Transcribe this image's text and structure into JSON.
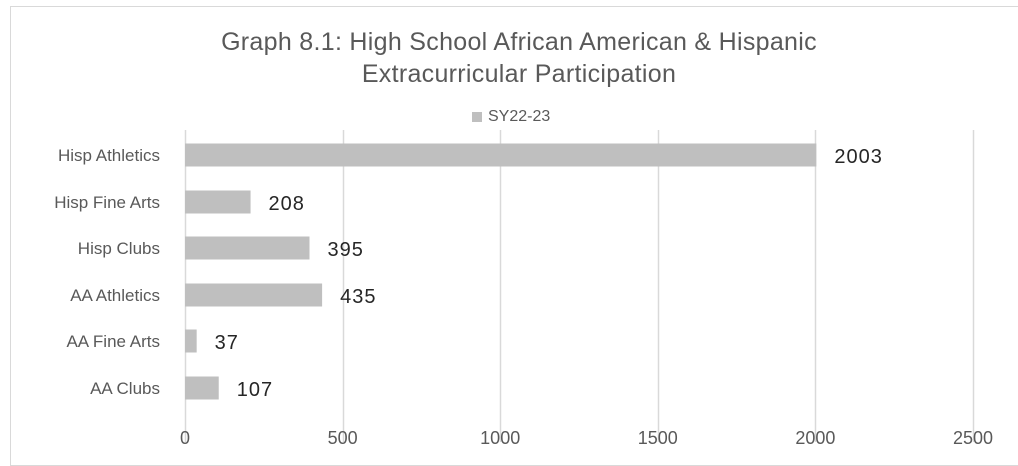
{
  "chart_data": {
    "type": "bar",
    "orientation": "horizontal",
    "title": "Graph 8.1: High School African American & Hispanic Extracurricular Participation",
    "title_lines": [
      "Graph 8.1: High School African American & Hispanic",
      "Extracurricular Participation"
    ],
    "categories": [
      "Hisp Athletics",
      "Hisp Fine Arts",
      "Hisp Clubs",
      "AA Athletics",
      "AA Fine Arts",
      "AA Clubs"
    ],
    "series": [
      {
        "name": "SY22-23",
        "values": [
          2003,
          208,
          395,
          435,
          37,
          107
        ]
      }
    ],
    "data_labels": [
      "2003",
      "208",
      "395",
      "435",
      "37",
      "107"
    ],
    "x_ticks": [
      0,
      500,
      1000,
      1500,
      2000,
      2500
    ],
    "x_tick_labels": [
      "0",
      "500",
      "1000",
      "1500",
      "2000",
      "2500"
    ],
    "xlim": [
      0,
      2500
    ],
    "xlabel": "",
    "ylabel": "",
    "grid": true,
    "legend_position": "top"
  },
  "colors": {
    "bar": "#bfbfbf",
    "grid": "#d9d9d9",
    "axis_text": "#595959",
    "data_label": "#262626",
    "title": "#595959"
  }
}
